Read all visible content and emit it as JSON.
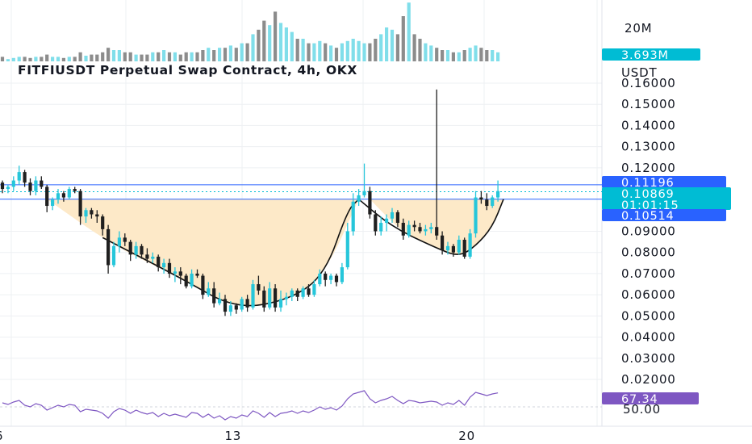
{
  "title": "FITFIUSDT Perpetual Swap Contract, 4h, OKX",
  "colors": {
    "bull": "#26c6da",
    "bear": "#1f1f1f",
    "volume_up": "#80deea",
    "volume_down": "#8c8c8c",
    "cup_fill": "#fde9c8",
    "line_blue": "#2962ff",
    "rsi": "#7e57c2",
    "tag_blue": "#2962ff",
    "tag_cyan": "#00bcd4",
    "tag_purple": "#7e57c2",
    "grid": "#eef0f3"
  },
  "volume_panel": {
    "scale_label": "20M",
    "current_label": "3.693M"
  },
  "price_axis": {
    "unit": "USDT",
    "ticks": [
      "0.16000",
      "0.15000",
      "0.14000",
      "0.13000",
      "0.12000",
      "0.09000",
      "0.08000",
      "0.07000",
      "0.06000",
      "0.05000",
      "0.04000",
      "0.03000",
      "0.02000"
    ]
  },
  "price_tags": {
    "upper": "0.11196",
    "last": "0.10869",
    "countdown": "01:01:15",
    "lower": "0.10514"
  },
  "rsi_panel": {
    "current_label": "67.34",
    "level_label": "50.00"
  },
  "time_axis": {
    "labels": [
      {
        "label": "6",
        "bar": 0
      },
      {
        "label": "13",
        "bar": 42
      },
      {
        "label": "20",
        "bar": 84
      }
    ]
  },
  "chart_data": {
    "type": "candlestick",
    "title": "FITFIUSDT Perpetual Swap Contract, 4h, OKX",
    "ylabel": "USDT",
    "ylim": [
      0.015,
      0.17
    ],
    "levels": {
      "upper": 0.11196,
      "lower": 0.10514,
      "last": 0.10869
    },
    "ohlc": [
      [
        0.113,
        0.114,
        0.108,
        0.11
      ],
      [
        0.11,
        0.112,
        0.108,
        0.111
      ],
      [
        0.111,
        0.116,
        0.109,
        0.114
      ],
      [
        0.114,
        0.121,
        0.112,
        0.118
      ],
      [
        0.118,
        0.119,
        0.111,
        0.113
      ],
      [
        0.113,
        0.115,
        0.107,
        0.109
      ],
      [
        0.109,
        0.116,
        0.107,
        0.114
      ],
      [
        0.114,
        0.116,
        0.11,
        0.111
      ],
      [
        0.111,
        0.112,
        0.099,
        0.102
      ],
      [
        0.102,
        0.106,
        0.1,
        0.105
      ],
      [
        0.105,
        0.11,
        0.103,
        0.108
      ],
      [
        0.108,
        0.109,
        0.104,
        0.106
      ],
      [
        0.106,
        0.111,
        0.105,
        0.11
      ],
      [
        0.11,
        0.111,
        0.108,
        0.109
      ],
      [
        0.109,
        0.11,
        0.093,
        0.097
      ],
      [
        0.097,
        0.101,
        0.094,
        0.1
      ],
      [
        0.1,
        0.101,
        0.096,
        0.098
      ],
      [
        0.098,
        0.1,
        0.094,
        0.097
      ],
      [
        0.097,
        0.098,
        0.088,
        0.091
      ],
      [
        0.091,
        0.093,
        0.07,
        0.074
      ],
      [
        0.074,
        0.085,
        0.073,
        0.083
      ],
      [
        0.083,
        0.09,
        0.08,
        0.087
      ],
      [
        0.087,
        0.089,
        0.083,
        0.085
      ],
      [
        0.085,
        0.086,
        0.076,
        0.079
      ],
      [
        0.079,
        0.085,
        0.077,
        0.083
      ],
      [
        0.083,
        0.084,
        0.077,
        0.079
      ],
      [
        0.079,
        0.082,
        0.075,
        0.077
      ],
      [
        0.077,
        0.08,
        0.075,
        0.078
      ],
      [
        0.078,
        0.079,
        0.071,
        0.073
      ],
      [
        0.073,
        0.077,
        0.07,
        0.075
      ],
      [
        0.075,
        0.077,
        0.068,
        0.07
      ],
      [
        0.07,
        0.073,
        0.066,
        0.071
      ],
      [
        0.071,
        0.073,
        0.065,
        0.069
      ],
      [
        0.069,
        0.07,
        0.063,
        0.064
      ],
      [
        0.064,
        0.072,
        0.063,
        0.07
      ],
      [
        0.07,
        0.072,
        0.068,
        0.069
      ],
      [
        0.069,
        0.07,
        0.058,
        0.06
      ],
      [
        0.06,
        0.066,
        0.059,
        0.063
      ],
      [
        0.063,
        0.066,
        0.054,
        0.056
      ],
      [
        0.056,
        0.061,
        0.055,
        0.058
      ],
      [
        0.058,
        0.06,
        0.05,
        0.052
      ],
      [
        0.052,
        0.057,
        0.05,
        0.055
      ],
      [
        0.055,
        0.056,
        0.051,
        0.053
      ],
      [
        0.053,
        0.059,
        0.052,
        0.058
      ],
      [
        0.058,
        0.06,
        0.052,
        0.054
      ],
      [
        0.054,
        0.067,
        0.053,
        0.065
      ],
      [
        0.065,
        0.069,
        0.06,
        0.062
      ],
      [
        0.062,
        0.064,
        0.052,
        0.054
      ],
      [
        0.054,
        0.066,
        0.053,
        0.063
      ],
      [
        0.063,
        0.065,
        0.052,
        0.054
      ],
      [
        0.054,
        0.062,
        0.052,
        0.058
      ],
      [
        0.058,
        0.061,
        0.055,
        0.059
      ],
      [
        0.059,
        0.063,
        0.057,
        0.062
      ],
      [
        0.062,
        0.063,
        0.057,
        0.059
      ],
      [
        0.059,
        0.064,
        0.058,
        0.063
      ],
      [
        0.063,
        0.065,
        0.059,
        0.06
      ],
      [
        0.06,
        0.067,
        0.059,
        0.065
      ],
      [
        0.065,
        0.072,
        0.064,
        0.07
      ],
      [
        0.07,
        0.071,
        0.064,
        0.067
      ],
      [
        0.067,
        0.07,
        0.065,
        0.069
      ],
      [
        0.069,
        0.07,
        0.064,
        0.066
      ],
      [
        0.066,
        0.075,
        0.065,
        0.073
      ],
      [
        0.073,
        0.094,
        0.072,
        0.09
      ],
      [
        0.09,
        0.108,
        0.088,
        0.104
      ],
      [
        0.104,
        0.11,
        0.102,
        0.107
      ],
      [
        0.107,
        0.122,
        0.106,
        0.109
      ],
      [
        0.109,
        0.111,
        0.096,
        0.098
      ],
      [
        0.098,
        0.1,
        0.088,
        0.09
      ],
      [
        0.09,
        0.097,
        0.088,
        0.094
      ],
      [
        0.094,
        0.098,
        0.09,
        0.096
      ],
      [
        0.096,
        0.101,
        0.094,
        0.099
      ],
      [
        0.099,
        0.1,
        0.092,
        0.094
      ],
      [
        0.094,
        0.096,
        0.086,
        0.088
      ],
      [
        0.088,
        0.095,
        0.087,
        0.093
      ],
      [
        0.093,
        0.095,
        0.09,
        0.092
      ],
      [
        0.092,
        0.094,
        0.089,
        0.09
      ],
      [
        0.09,
        0.093,
        0.088,
        0.091
      ],
      [
        0.091,
        0.094,
        0.089,
        0.092
      ],
      [
        0.092,
        0.157,
        0.086,
        0.088
      ],
      [
        0.088,
        0.09,
        0.079,
        0.081
      ],
      [
        0.081,
        0.085,
        0.079,
        0.083
      ],
      [
        0.083,
        0.084,
        0.078,
        0.08
      ],
      [
        0.08,
        0.088,
        0.079,
        0.086
      ],
      [
        0.086,
        0.087,
        0.077,
        0.078
      ],
      [
        0.078,
        0.091,
        0.077,
        0.089
      ],
      [
        0.089,
        0.109,
        0.087,
        0.106
      ],
      [
        0.106,
        0.109,
        0.103,
        0.105
      ],
      [
        0.105,
        0.108,
        0.1,
        0.102
      ],
      [
        0.102,
        0.107,
        0.101,
        0.106
      ],
      [
        0.106,
        0.114,
        0.104,
        0.109
      ]
    ],
    "volume_max_m": 25,
    "volume_m": [
      2,
      1,
      1.5,
      2,
      2,
      1.5,
      2,
      2,
      3,
      2,
      2,
      1.5,
      2,
      2,
      4,
      2.5,
      3,
      3,
      4,
      6,
      5,
      5,
      4,
      4,
      3,
      3,
      3,
      4,
      4,
      5,
      4,
      4,
      3,
      4,
      4,
      4,
      5,
      6,
      5,
      6,
      6,
      7,
      6,
      8,
      8,
      12,
      14,
      18,
      16,
      22,
      17,
      15,
      13,
      10,
      10,
      8,
      8,
      9,
      8,
      7,
      6,
      8,
      9,
      10,
      9,
      8,
      8,
      10,
      12,
      15,
      14,
      12,
      20,
      26,
      12,
      10,
      8,
      7,
      6,
      5,
      5,
      4,
      4,
      5,
      6,
      7,
      6,
      5,
      5,
      4
    ],
    "rsi": [
      55,
      53,
      56,
      58,
      52,
      50,
      54,
      52,
      46,
      49,
      52,
      50,
      53,
      52,
      44,
      47,
      46,
      45,
      42,
      36,
      44,
      48,
      46,
      42,
      46,
      43,
      41,
      43,
      38,
      42,
      39,
      41,
      39,
      37,
      43,
      42,
      37,
      41,
      36,
      39,
      34,
      38,
      36,
      40,
      38,
      45,
      42,
      37,
      43,
      38,
      42,
      43,
      45,
      42,
      45,
      43,
      46,
      50,
      47,
      49,
      46,
      51,
      60,
      66,
      68,
      70,
      60,
      55,
      58,
      60,
      63,
      58,
      54,
      58,
      57,
      55,
      56,
      57,
      56,
      52,
      55,
      53,
      58,
      52,
      62,
      68,
      66,
      64,
      66,
      67.34
    ],
    "rsi_ylim": [
      30,
      80
    ]
  }
}
